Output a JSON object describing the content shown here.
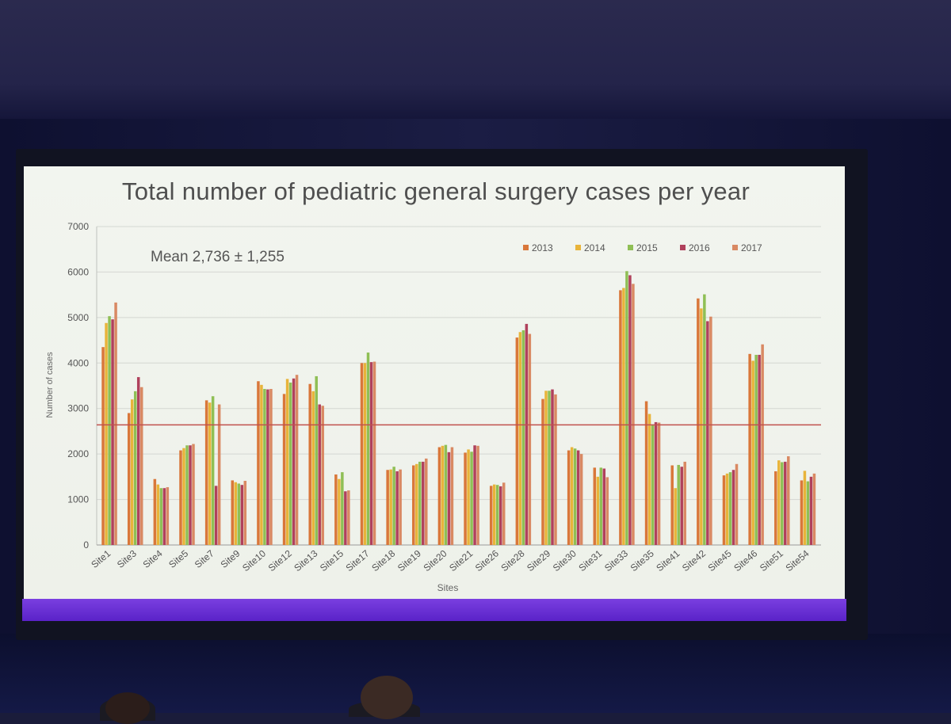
{
  "chart_data": {
    "type": "bar",
    "title": "Total number of pediatric general surgery cases per year",
    "xlabel": "Sites",
    "ylabel": "Number of cases",
    "ylim": [
      0,
      7000
    ],
    "yticks": [
      0,
      1000,
      2000,
      3000,
      4000,
      5000,
      6000,
      7000
    ],
    "grid": true,
    "legend_position": "top-right",
    "annotation": "Mean 2,736 ± 1,255",
    "reference_line": {
      "value": 2640,
      "color": "#c0504d"
    },
    "categories": [
      "Site1",
      "Site3",
      "Site4",
      "Site5",
      "Site7",
      "Site9",
      "Site10",
      "Site12",
      "Site13",
      "Site15",
      "Site17",
      "Site18",
      "Site19",
      "Site20",
      "Site21",
      "Site26",
      "Site28",
      "Site29",
      "Site30",
      "Site31",
      "Site33",
      "Site35",
      "Site41",
      "Site42",
      "Site45",
      "Site46",
      "Site51",
      "Site54"
    ],
    "series": [
      {
        "name": "2013",
        "color": "#d9773a",
        "values": [
          4350,
          2900,
          1450,
          2080,
          3180,
          1420,
          3600,
          3320,
          3540,
          1550,
          4000,
          1650,
          1750,
          2150,
          2030,
          1300,
          4560,
          3210,
          2080,
          1700,
          5600,
          3160,
          1750,
          5420,
          1530,
          4200,
          1620,
          1420
        ]
      },
      {
        "name": "2014",
        "color": "#e8b43a",
        "values": [
          4880,
          3200,
          1330,
          2130,
          3130,
          1380,
          3520,
          3650,
          3380,
          1450,
          4000,
          1660,
          1780,
          2180,
          2100,
          1330,
          4680,
          3390,
          2150,
          1500,
          5650,
          2880,
          1250,
          5200,
          1570,
          4050,
          1860,
          1630
        ]
      },
      {
        "name": "2015",
        "color": "#8fbf55",
        "values": [
          5030,
          3380,
          1250,
          2190,
          3270,
          1350,
          3430,
          3570,
          3710,
          1600,
          4230,
          1720,
          1830,
          2200,
          2050,
          1320,
          4720,
          3390,
          2120,
          1700,
          6020,
          2630,
          1760,
          5510,
          1600,
          4180,
          1820,
          1400
        ]
      },
      {
        "name": "2016",
        "color": "#b0415c",
        "values": [
          4960,
          3690,
          1250,
          2190,
          1300,
          1320,
          3420,
          3660,
          3090,
          1180,
          4020,
          1620,
          1830,
          2040,
          2190,
          1290,
          4860,
          3420,
          2080,
          1680,
          5930,
          2700,
          1720,
          4920,
          1650,
          4180,
          1830,
          1500
        ]
      },
      {
        "name": "2017",
        "color": "#d98963",
        "values": [
          5330,
          3470,
          1270,
          2220,
          3090,
          1410,
          3430,
          3740,
          3060,
          1200,
          4030,
          1660,
          1900,
          2150,
          2180,
          1370,
          4640,
          3310,
          2000,
          1490,
          5740,
          2690,
          1830,
          5020,
          1780,
          4410,
          1950,
          1570
        ]
      }
    ]
  }
}
